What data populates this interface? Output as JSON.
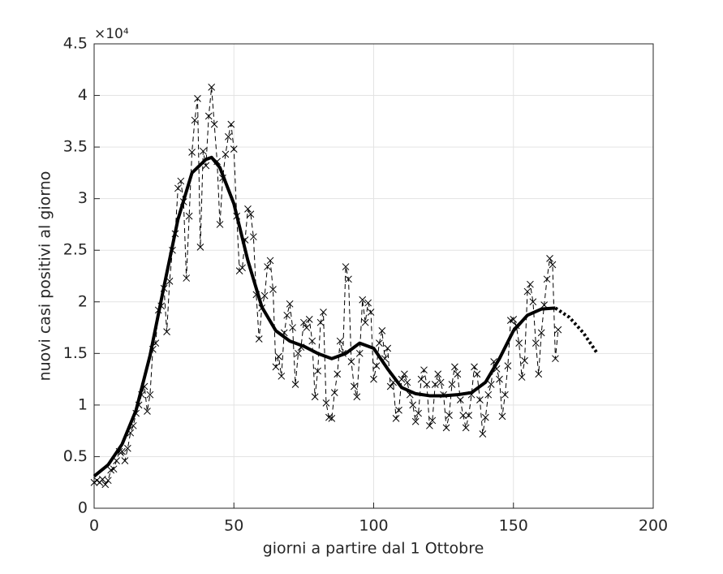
{
  "chart_data": {
    "type": "line",
    "xlabel": "giorni a partire dal 1 Ottobre",
    "ylabel": "nuovi casi positivi al giorno",
    "y_exponent": "×10⁴",
    "xlim": [
      0,
      200
    ],
    "xticks": [
      0,
      50,
      100,
      150,
      200
    ],
    "ylim": [
      0,
      4.5
    ],
    "yticks": [
      0,
      0.5,
      1,
      1.5,
      2,
      2.5,
      3,
      3.5,
      4,
      4.5
    ],
    "grid": true,
    "series": [
      {
        "color": "#000000",
        "style": "dashed",
        "marker": "x",
        "x": [
          0,
          1,
          2,
          3,
          4,
          5,
          6,
          7,
          8,
          9,
          10,
          11,
          12,
          13,
          14,
          15,
          16,
          17,
          18,
          19,
          20,
          21,
          22,
          23,
          24,
          25,
          26,
          27,
          28,
          29,
          30,
          31,
          32,
          33,
          34,
          35,
          36,
          37,
          38,
          39,
          40,
          41,
          42,
          43,
          44,
          45,
          46,
          47,
          48,
          49,
          50,
          51,
          52,
          53,
          54,
          55,
          56,
          57,
          58,
          59,
          60,
          61,
          62,
          63,
          64,
          65,
          66,
          67,
          68,
          69,
          70,
          71,
          72,
          73,
          74,
          75,
          76,
          77,
          78,
          79,
          80,
          81,
          82,
          83,
          84,
          85,
          86,
          87,
          88,
          89,
          90,
          91,
          92,
          93,
          94,
          95,
          96,
          97,
          98,
          99,
          100,
          101,
          102,
          103,
          104,
          105,
          106,
          107,
          108,
          109,
          110,
          111,
          112,
          113,
          114,
          115,
          116,
          117,
          118,
          119,
          120,
          121,
          122,
          123,
          124,
          125,
          126,
          127,
          128,
          129,
          130,
          131,
          132,
          133,
          134,
          135,
          136,
          137,
          138,
          139,
          140,
          141,
          142,
          143,
          144,
          145,
          146,
          147,
          148,
          149,
          150,
          151,
          152,
          153,
          154,
          155,
          156,
          157,
          158,
          159,
          160,
          161,
          162,
          163,
          164,
          165,
          166
        ],
        "values": [
          0.25,
          0.27,
          0.25,
          0.28,
          0.23,
          0.27,
          0.37,
          0.38,
          0.46,
          0.55,
          0.55,
          0.46,
          0.58,
          0.73,
          0.8,
          0.92,
          1.0,
          1.1,
          1.18,
          0.94,
          1.1,
          1.54,
          1.6,
          1.92,
          1.96,
          2.13,
          1.71,
          2.2,
          2.5,
          2.66,
          3.1,
          3.17,
          2.97,
          2.23,
          2.83,
          3.45,
          3.76,
          3.97,
          2.53,
          3.46,
          3.32,
          3.8,
          4.08,
          3.72,
          3.36,
          2.75,
          3.2,
          3.43,
          3.6,
          3.72,
          3.48,
          2.83,
          2.3,
          2.33,
          2.6,
          2.9,
          2.85,
          2.63,
          2.07,
          1.64,
          1.94,
          2.06,
          2.34,
          2.4,
          2.12,
          1.37,
          1.47,
          1.28,
          1.7,
          1.87,
          1.98,
          1.75,
          1.2,
          1.5,
          1.56,
          1.8,
          1.75,
          1.83,
          1.62,
          1.08,
          1.33,
          1.8,
          1.9,
          1.02,
          0.88,
          0.87,
          1.12,
          1.3,
          1.62,
          1.5,
          2.34,
          2.22,
          1.42,
          1.18,
          1.08,
          1.5,
          2.02,
          1.8,
          1.99,
          1.9,
          1.25,
          1.38,
          1.6,
          1.72,
          1.45,
          1.55,
          1.18,
          1.22,
          0.87,
          0.95,
          1.25,
          1.3,
          1.22,
          1.1,
          1.0,
          0.84,
          0.92,
          1.25,
          1.34,
          1.2,
          0.8,
          0.85,
          1.2,
          1.3,
          1.22,
          1.1,
          0.78,
          0.9,
          1.2,
          1.37,
          1.3,
          1.05,
          0.9,
          0.78,
          0.9,
          1.1,
          1.37,
          1.3,
          1.05,
          0.72,
          0.88,
          1.1,
          1.2,
          1.42,
          1.35,
          1.25,
          0.89,
          1.1,
          1.38,
          1.82,
          1.83,
          1.77,
          1.6,
          1.27,
          1.43,
          2.1,
          2.17,
          2.0,
          1.6,
          1.3,
          1.7,
          1.97,
          2.22,
          2.42,
          2.36,
          1.45,
          1.73
        ]
      },
      {
        "color": "#000000",
        "style": "solid",
        "x": [
          0,
          5,
          10,
          15,
          20,
          25,
          30,
          35,
          40,
          42,
          45,
          50,
          55,
          60,
          65,
          70,
          75,
          80,
          85,
          90,
          95,
          100,
          105,
          110,
          115,
          120,
          125,
          130,
          135,
          140,
          145,
          150,
          155,
          160,
          165
        ],
        "values": [
          0.31,
          0.42,
          0.62,
          0.95,
          1.48,
          2.15,
          2.8,
          3.25,
          3.38,
          3.4,
          3.3,
          2.95,
          2.4,
          1.95,
          1.72,
          1.62,
          1.57,
          1.5,
          1.45,
          1.5,
          1.6,
          1.55,
          1.35,
          1.17,
          1.11,
          1.09,
          1.09,
          1.1,
          1.12,
          1.22,
          1.45,
          1.72,
          1.87,
          1.93,
          1.94
        ]
      },
      {
        "color": "#000000",
        "style": "dotted",
        "x": [
          165,
          170,
          175,
          180
        ],
        "values": [
          1.94,
          1.85,
          1.7,
          1.5
        ]
      }
    ]
  }
}
